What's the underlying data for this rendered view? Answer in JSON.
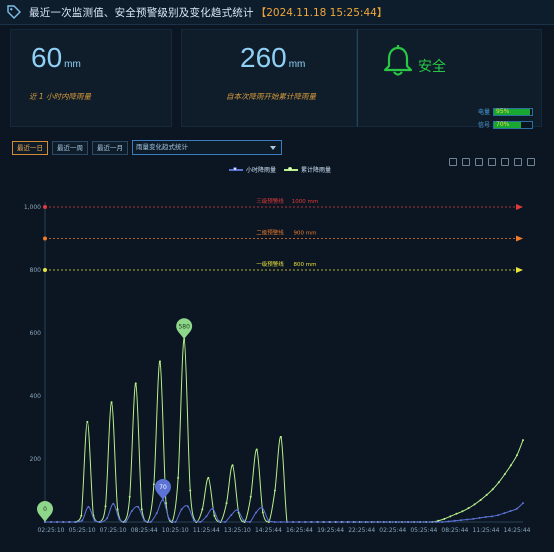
{
  "header": {
    "icon": "tag-icon",
    "title": "最近一次监测值、安全预警级别及变化趋式统计",
    "timestamp": "【2024.11.18 15:25:44】"
  },
  "cards": {
    "hourly": {
      "value": "60",
      "unit": "mm",
      "caption": "近 1 小时内降雨量"
    },
    "cumulative": {
      "value": "260",
      "unit": "mm",
      "caption": "自本次降雨开始累计降雨量"
    },
    "status": {
      "icon": "bell-icon",
      "label": "安全",
      "color": "#29c744",
      "power_label": "电量",
      "power_pct": "95%",
      "power_level": 0.95,
      "signal_label": "信号",
      "signal_pct": "70%",
      "signal_level": 0.7
    }
  },
  "toolbar": {
    "day": "最近一日",
    "week": "最近一周",
    "month": "最近一月",
    "select_value": "雨量变化趋式统计"
  },
  "legend": {
    "hourly": "小时降雨量",
    "cumulative": "累计降雨量"
  },
  "colors": {
    "hourly": "#5c73d6",
    "cumulative": "#b8f08a",
    "level3": "#e23b3b",
    "level2": "#f07d2c",
    "level1": "#e9e23d"
  },
  "chart_data": {
    "type": "line",
    "yticks": [
      "1,000",
      "800",
      "600",
      "400",
      "200"
    ],
    "ylim": [
      0,
      1000
    ],
    "x_tick_labels": [
      "02:25:10",
      "05:25:10",
      "07:25:10",
      "08:25:44",
      "10:25:10",
      "11:25:44",
      "13:25:10",
      "14:25:44",
      "16:25:44",
      "19:25:44",
      "22:25:44",
      "02:25:44",
      "05:25:44",
      "08:25:44",
      "11:25:44",
      "14:25:44"
    ],
    "thresholds": [
      {
        "label": "三级预警线",
        "value_label": "1000 mm",
        "value": 1000,
        "color": "#e23b3b"
      },
      {
        "label": "二级预警线",
        "value_label": "900 mm",
        "value": 900,
        "color": "#f07d2c"
      },
      {
        "label": "一级预警线",
        "value_label": "800 mm",
        "value": 800,
        "color": "#e9e23d"
      }
    ],
    "series": [
      {
        "name": "小时降雨量",
        "values": [
          0,
          0,
          0,
          0,
          0,
          0,
          5,
          48,
          5,
          0,
          12,
          58,
          8,
          0,
          35,
          48,
          5,
          0,
          28,
          70,
          10,
          0,
          40,
          50,
          5,
          0,
          18,
          42,
          3,
          0,
          22,
          38,
          5,
          0,
          30,
          45,
          5,
          0,
          0,
          0,
          0,
          0,
          0,
          0,
          0,
          0,
          0,
          0,
          0,
          0,
          0,
          0,
          0,
          0,
          0,
          0,
          0,
          0,
          0,
          0,
          0,
          0,
          0,
          0,
          0,
          2,
          4,
          6,
          8,
          10,
          13,
          16,
          18,
          22,
          28,
          35,
          42,
          60
        ]
      },
      {
        "name": "累计降雨量",
        "values": [
          0,
          0,
          0,
          0,
          0,
          0,
          20,
          318,
          20,
          0,
          50,
          380,
          40,
          0,
          80,
          440,
          40,
          0,
          120,
          510,
          60,
          0,
          140,
          580,
          100,
          0,
          40,
          140,
          20,
          0,
          60,
          180,
          30,
          0,
          80,
          230,
          30,
          0,
          100,
          270,
          0,
          0,
          0,
          0,
          0,
          0,
          0,
          0,
          0,
          0,
          0,
          0,
          0,
          0,
          0,
          0,
          0,
          0,
          0,
          0,
          0,
          0,
          0,
          0,
          0,
          4,
          10,
          18,
          26,
          34,
          44,
          56,
          70,
          86,
          104,
          126,
          152,
          180,
          212,
          260
        ]
      }
    ],
    "markers": [
      {
        "series": "累计降雨量",
        "label": "0"
      },
      {
        "series": "累计降雨量",
        "label": "580"
      },
      {
        "series": "小时降雨量",
        "label": "70"
      }
    ]
  }
}
